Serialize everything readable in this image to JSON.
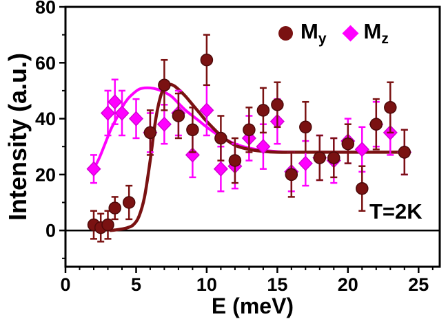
{
  "chart_data": {
    "type": "scatter",
    "title": "",
    "xlabel": "E (meV)",
    "ylabel": "Intensity (a.u.)",
    "annotation": "T=2K",
    "xlim": [
      0,
      26.5
    ],
    "ylim": [
      -13,
      80
    ],
    "xticks": [
      0,
      5,
      10,
      15,
      20,
      25
    ],
    "x_minor_step": 1,
    "yticks": [
      0,
      20,
      40,
      60,
      80
    ],
    "y_minor_step": 10,
    "grid": false,
    "legend_position": "top-right-inside",
    "legend": [
      {
        "base": "M",
        "sub": "y"
      },
      {
        "base": "M",
        "sub": "z"
      }
    ],
    "series": [
      {
        "name": "My",
        "marker": "circle",
        "color": "#7a1212",
        "edge": "#4d0909",
        "x": [
          2,
          2.5,
          3,
          3.5,
          4.5,
          6,
          7,
          8,
          9,
          10,
          11,
          12,
          13,
          14,
          15,
          16,
          17,
          18,
          19,
          20,
          21,
          22,
          23,
          24
        ],
        "y": [
          2,
          1,
          2,
          8,
          10,
          35,
          52,
          41,
          36,
          61,
          33,
          25,
          36,
          43,
          45,
          20,
          37,
          26,
          26,
          31,
          15,
          38,
          44,
          28
        ],
        "yerr": [
          5,
          5,
          5,
          4,
          6,
          8,
          9,
          8,
          8,
          9,
          8,
          8,
          8,
          8,
          8,
          8,
          9,
          8,
          7,
          7,
          8,
          9,
          9,
          8
        ],
        "fit_x": [
          3.2,
          3.6,
          4,
          4.4,
          4.8,
          5.2,
          5.6,
          6,
          6.4,
          6.8,
          7.2,
          7.6,
          8,
          8.5,
          9,
          9.5,
          10,
          11,
          12,
          13,
          14,
          15,
          16,
          18,
          20,
          22,
          24
        ],
        "fit_y": [
          0,
          0.2,
          0.5,
          1,
          2,
          5,
          12,
          25,
          40,
          49,
          52,
          52,
          50.5,
          48,
          45,
          42,
          39,
          34,
          30.5,
          29,
          28.3,
          28,
          28,
          28,
          28,
          28,
          28
        ]
      },
      {
        "name": "Mz",
        "marker": "diamond",
        "color": "#ff00ff",
        "edge": "#d400d4",
        "x": [
          2,
          3,
          3.5,
          4,
          5,
          6,
          7,
          8,
          9,
          10,
          11,
          12,
          13,
          14,
          15,
          16,
          17,
          18,
          19,
          20,
          21,
          22,
          23,
          24
        ],
        "y": [
          22,
          42,
          46,
          42,
          40,
          35,
          38,
          42,
          27,
          43,
          22,
          23,
          33,
          30,
          39,
          21,
          24,
          26,
          25,
          32,
          29,
          38,
          35,
          28
        ],
        "yerr": [
          5,
          8,
          8,
          8,
          7,
          7,
          7,
          8,
          8,
          9,
          8,
          8,
          8,
          8,
          8,
          7,
          8,
          8,
          8,
          8,
          8,
          8,
          8,
          8
        ],
        "fit_x": [
          2,
          2.4,
          2.8,
          3.2,
          3.6,
          4,
          4.4,
          4.8,
          5.2,
          5.6,
          6,
          6.5,
          7,
          7.5,
          8,
          8.5,
          9,
          9.5,
          10,
          11,
          12,
          13,
          14,
          15,
          16,
          18,
          20,
          22,
          24
        ],
        "fit_y": [
          22,
          26,
          31,
          36,
          40,
          44,
          47,
          49,
          50.5,
          51,
          51,
          50.5,
          49.5,
          48,
          45.5,
          43,
          41,
          39,
          37,
          33.5,
          31,
          29.5,
          28.7,
          28.2,
          28,
          28,
          28,
          28,
          28
        ]
      }
    ]
  }
}
